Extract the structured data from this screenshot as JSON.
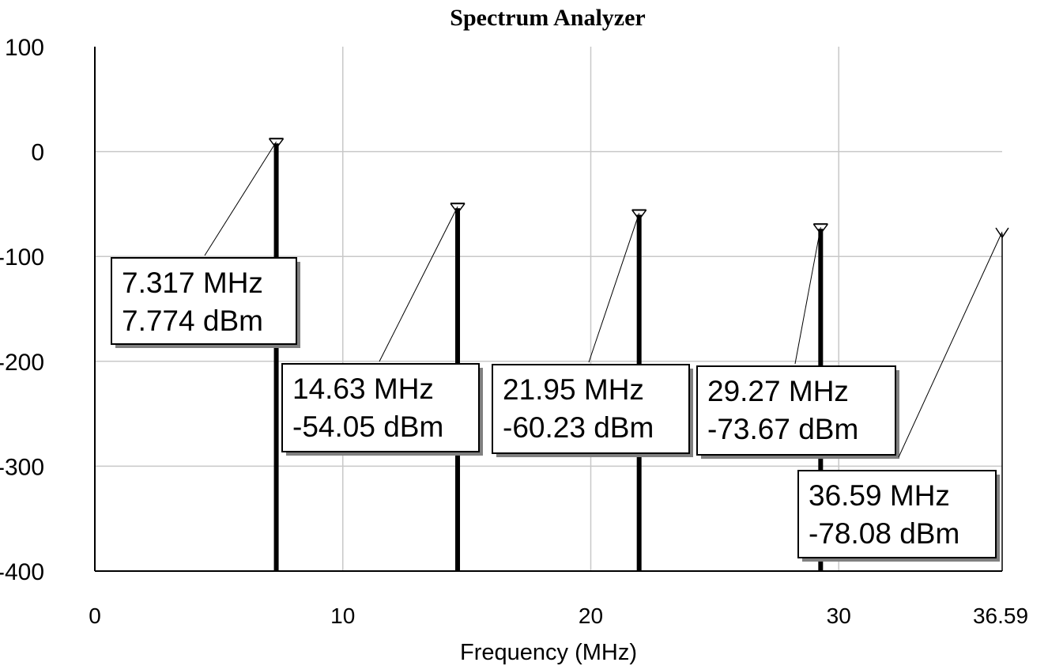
{
  "chart_data": {
    "type": "bar",
    "title": "Spectrum Analyzer",
    "xlabel": "Frequency (MHz)",
    "ylabel": "",
    "xlim": [
      0,
      36.59
    ],
    "ylim": [
      -400,
      100
    ],
    "x_ticks": [
      "0",
      "10",
      "20",
      "30",
      "36.59"
    ],
    "y_ticks": [
      "100",
      "0",
      "-100",
      "-200",
      "-300",
      "-400"
    ],
    "grid": true,
    "x_tick_values": [
      0,
      10,
      20,
      30,
      36.59
    ],
    "y_tick_values": [
      100,
      0,
      -100,
      -200,
      -300,
      -400
    ],
    "series": [
      {
        "x": [
          7.317,
          14.63,
          21.95,
          29.27,
          36.59
        ],
        "values": [
          7.774,
          -54.05,
          -60.23,
          -73.67,
          -78.08
        ]
      }
    ],
    "annotations": [
      {
        "freq": "7.317 MHz",
        "level": "7.774 dBm"
      },
      {
        "freq": "14.63 MHz",
        "level": "-54.05 dBm"
      },
      {
        "freq": "21.95 MHz",
        "level": "-60.23 dBm"
      },
      {
        "freq": "29.27 MHz",
        "level": "-73.67 dBm"
      },
      {
        "freq": "36.59 MHz",
        "level": "-78.08 dBm"
      }
    ],
    "colors": {
      "bar": "#000000",
      "grid": "#c8c8c8",
      "box_shadow": "#808080"
    }
  }
}
